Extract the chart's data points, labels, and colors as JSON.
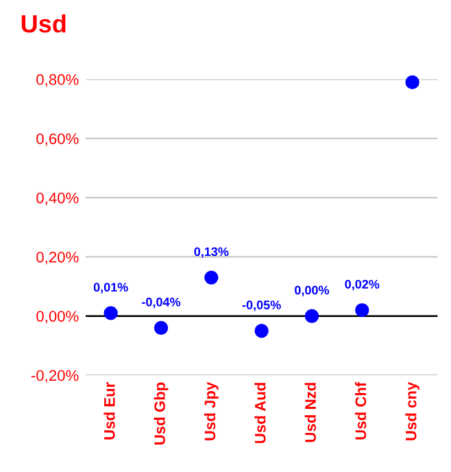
{
  "chart_data": {
    "type": "scatter",
    "title": "Usd",
    "categories": [
      "Usd Eur",
      "Usd Gbp",
      "Usd Jpy",
      "Usd Aud",
      "Usd Nzd",
      "Usd Chf",
      "Usd cny"
    ],
    "series": [
      {
        "color": "#0000ff",
        "values": [
          0.01,
          -0.04,
          0.13,
          -0.05,
          0.0,
          0.02,
          0.79
        ],
        "value_labels": [
          "0,01%",
          "-0,04%",
          "0,13%",
          "-0,05%",
          "0,00%",
          "0,02%",
          null
        ]
      }
    ],
    "ylim": [
      -0.2,
      0.8
    ],
    "yticks": [
      {
        "value": -0.2,
        "label": "-0,20%"
      },
      {
        "value": 0.0,
        "label": "0,00%"
      },
      {
        "value": 0.2,
        "label": "0,20%"
      },
      {
        "value": 0.4,
        "label": "0,40%"
      },
      {
        "value": 0.6,
        "label": "0,60%"
      },
      {
        "value": 0.8,
        "label": "0,80%"
      }
    ],
    "ref_lines": [
      {
        "axis": "y",
        "value": 0.0,
        "color": "#000000"
      }
    ],
    "grid": "y",
    "marker": "circle",
    "legend": false
  }
}
